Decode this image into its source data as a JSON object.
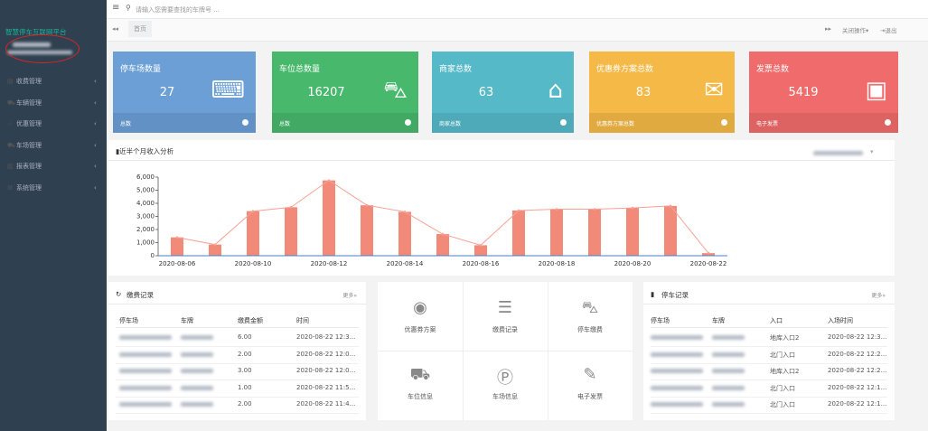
{
  "sidebar": {
    "title": "智慧停车互联网平台",
    "menu": [
      "收费管理",
      "车辆管理",
      "优惠管理",
      "车场管理",
      "报表管理",
      "系统管理"
    ]
  },
  "topbar": {
    "search_placeholder": "请输入您需要查找的车牌号 ...",
    "tab": "首页",
    "close_ops": "关闭操作",
    "logout": "退出"
  },
  "cards": [
    {
      "title": "停车场数量",
      "value": 27,
      "footer": "总数",
      "color": "#6b9fd6"
    },
    {
      "title": "车位总数量",
      "value": 16207,
      "footer": "总数",
      "color": "#47b86c"
    },
    {
      "title": "商家总数",
      "value": 63,
      "footer": "商家总数",
      "color": "#55b9c8"
    },
    {
      "title": "优惠券方案总数",
      "value": 83,
      "footer": "优惠券方案总数",
      "color": "#f5b947"
    },
    {
      "title": "发票总数",
      "value": 5419,
      "footer": "电子发票",
      "color": "#f06b6b"
    }
  ],
  "chart_data": {
    "type": "bar",
    "title": "近半个月收入分析",
    "categories": [
      "2020-08-06",
      null,
      "2020-08-10",
      null,
      "2020-08-12",
      null,
      "2020-08-14",
      null,
      "2020-08-16",
      null,
      "2020-08-18",
      null,
      "2020-08-20",
      null,
      "2020-08-22"
    ],
    "values": [
      1400,
      850,
      3400,
      3700,
      5750,
      3850,
      3350,
      1650,
      800,
      3450,
      3550,
      3550,
      3650,
      3800,
      200
    ],
    "color": "#f28a7a",
    "line_color": "#f6a295",
    "ylim": [
      0,
      6000
    ],
    "yticks": [
      0,
      {
        "value": 1000,
        "label": "1,000"
      },
      {
        "value": 2000,
        "label": "2,000"
      },
      {
        "value": 3000,
        "label": "3,000"
      },
      {
        "value": 4000,
        "label": "4,000"
      },
      {
        "value": 5000,
        "label": "5,000"
      },
      {
        "value": 6000,
        "label": "6,000"
      }
    ],
    "grid": false
  },
  "payments": {
    "title": "缴费记录",
    "more": "更多»",
    "headers": [
      "停车场",
      "车牌",
      "缴费金额",
      "时间"
    ],
    "amounts": [
      "6.00",
      "2.00",
      "3.00",
      "1.00",
      "2.00"
    ],
    "times": [
      "2020-08-22 12:3...",
      "2020-08-22 12:0...",
      "2020-08-22 12:0...",
      "2020-08-22 11:5...",
      "2020-08-22 11:4..."
    ]
  },
  "shortcuts": [
    "优惠券方案",
    "缴费记录",
    "停车缴费",
    "车位信息",
    "车场信息",
    "电子发票"
  ],
  "parking": {
    "title": "停车记录",
    "more": "更多»",
    "headers": [
      "停车场",
      "车牌",
      "入口",
      "入场时间"
    ],
    "entrances": [
      "地库入口2",
      "北门入口",
      "地库入口2",
      "北门入口",
      "北门入口"
    ],
    "times": [
      "2020-08-22 12:3...",
      "2020-08-22 12:2...",
      "2020-08-22 12:2...",
      "2020-08-22 12:1...",
      "2020-08-22 12:1..."
    ]
  }
}
